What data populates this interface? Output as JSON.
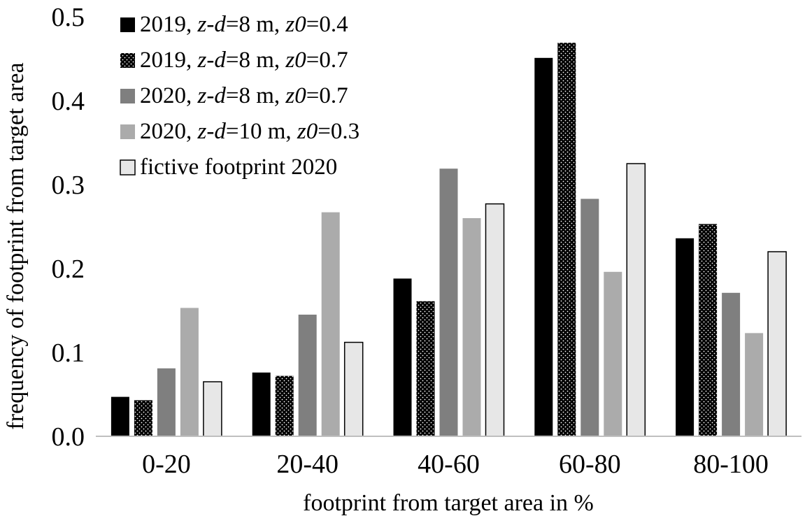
{
  "chart_data": {
    "type": "bar",
    "title": "",
    "xlabel": "footprint from target area in %",
    "ylabel": "frequency of footprint from target area",
    "categories": [
      "0-20",
      "20-40",
      "40-60",
      "60-80",
      "80-100"
    ],
    "ylim": [
      0,
      0.5
    ],
    "yticks": [
      "0.0",
      "0.1",
      "0.2",
      "0.3",
      "0.4",
      "0.5"
    ],
    "ytick_values": [
      0,
      0.1,
      0.2,
      0.3,
      0.4,
      0.5
    ],
    "grid": false,
    "legend_position": "top-left",
    "series": [
      {
        "name": "2019, z-d=8 m, z0=0.4",
        "legend_parts": [
          [
            "2019, ",
            ""
          ],
          [
            "z-d",
            "i"
          ],
          [
            "=8 m, ",
            ""
          ],
          [
            "z0",
            "i"
          ],
          [
            "=0.4",
            ""
          ]
        ],
        "values": [
          0.047,
          0.076,
          0.188,
          0.451,
          0.236
        ],
        "fill": "#000000",
        "pattern": "solid"
      },
      {
        "name": "2019, z-d=8 m, z0=0.7",
        "legend_parts": [
          [
            "2019, ",
            ""
          ],
          [
            "z-d",
            "i"
          ],
          [
            "=8 m, ",
            ""
          ],
          [
            "z0",
            "i"
          ],
          [
            "=0.7",
            ""
          ]
        ],
        "values": [
          0.043,
          0.072,
          0.161,
          0.469,
          0.253
        ],
        "fill": "#000000",
        "pattern": "dotted"
      },
      {
        "name": "2020, z-d=8 m, z0=0.7",
        "legend_parts": [
          [
            "2020, ",
            ""
          ],
          [
            "z-d",
            "i"
          ],
          [
            "=8 m, ",
            ""
          ],
          [
            "z0",
            "i"
          ],
          [
            "=0.7",
            ""
          ]
        ],
        "values": [
          0.081,
          0.145,
          0.319,
          0.283,
          0.171
        ],
        "fill": "#7f7f7f",
        "pattern": "solid"
      },
      {
        "name": "2020, z-d=10 m, z0=0.3",
        "legend_parts": [
          [
            "2020, ",
            ""
          ],
          [
            "z-d",
            "i"
          ],
          [
            "=10 m, ",
            ""
          ],
          [
            "z0",
            "i"
          ],
          [
            "=0.3",
            ""
          ]
        ],
        "values": [
          0.153,
          0.267,
          0.26,
          0.196,
          0.123
        ],
        "fill": "#ababab",
        "pattern": "solid"
      },
      {
        "name": "fictive footprint 2020",
        "legend_parts": [
          [
            "fictive footprint 2020",
            ""
          ]
        ],
        "values": [
          0.065,
          0.112,
          0.277,
          0.325,
          0.22
        ],
        "fill": "#e7e7e7",
        "pattern": "outlined"
      }
    ]
  }
}
